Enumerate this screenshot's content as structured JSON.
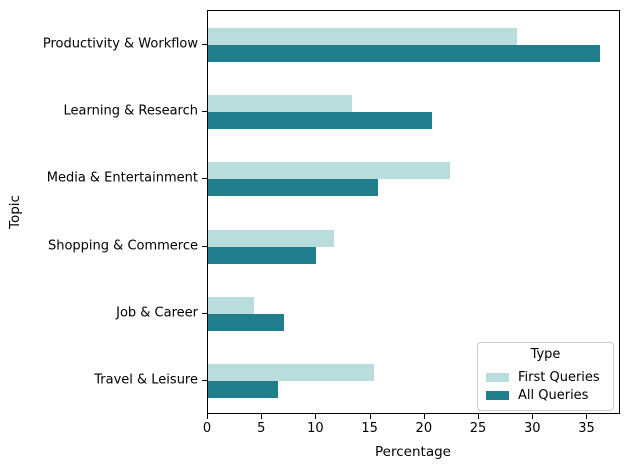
{
  "chart_data": {
    "type": "bar",
    "orientation": "horizontal",
    "xlabel": "Percentage",
    "ylabel": "Topic",
    "categories": [
      "Productivity & Workflow",
      "Learning & Research",
      "Media & Entertainment",
      "Shopping & Commerce",
      "Job & Career",
      "Travel & Leisure"
    ],
    "series": [
      {
        "name": "First Queries",
        "color": "#b9dcdc",
        "values": [
          28.5,
          13.3,
          22.3,
          11.6,
          4.2,
          15.3
        ]
      },
      {
        "name": "All Queries",
        "color": "#217e8c",
        "values": [
          36.2,
          20.7,
          15.7,
          10.0,
          7.0,
          6.5
        ]
      }
    ],
    "xlim": [
      0,
      38
    ],
    "xticks": [
      0,
      5,
      10,
      15,
      20,
      25,
      30,
      35
    ],
    "grid": false,
    "legend": {
      "title": "Type",
      "position": "lower-right"
    },
    "colors": {
      "spine": "#000000",
      "text": "#000000",
      "legend_border": "#cccccc"
    }
  }
}
